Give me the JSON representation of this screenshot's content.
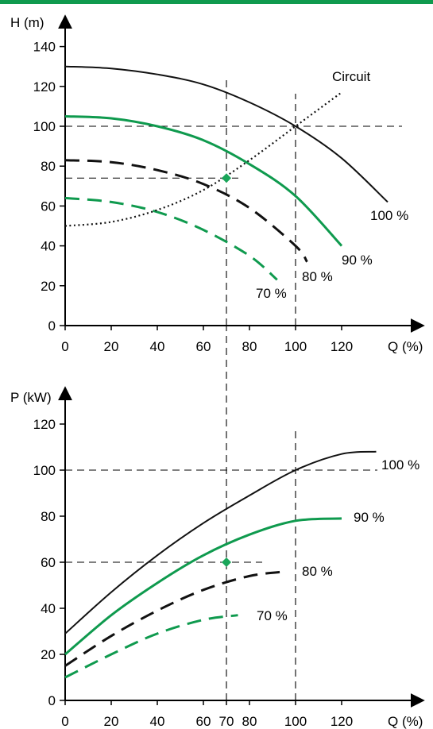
{
  "colors": {
    "accent_bar": "#0f9a4e",
    "green": "#0f9a4e",
    "black": "#111111",
    "marker": "#1aa65a"
  },
  "chart_data": [
    {
      "id": "head",
      "type": "line",
      "ylabel": "H (m)",
      "xlabel": "Q (%)",
      "xlim": [
        0,
        150
      ],
      "ylim": [
        0,
        150
      ],
      "xticks": [
        0,
        20,
        40,
        60,
        80,
        100,
        120
      ],
      "yticks": [
        0,
        20,
        40,
        60,
        80,
        100,
        120,
        140
      ],
      "series": [
        {
          "name": "100 %",
          "color": "black",
          "dash": "solid",
          "x": [
            0,
            20,
            40,
            60,
            80,
            100,
            120,
            140
          ],
          "y": [
            130,
            129,
            126,
            121,
            112,
            100,
            84,
            62
          ]
        },
        {
          "name": "90 %",
          "color": "green",
          "dash": "solid",
          "x": [
            0,
            20,
            40,
            60,
            80,
            100,
            120
          ],
          "y": [
            105,
            104,
            100,
            93,
            81,
            65,
            40
          ]
        },
        {
          "name": "80 %",
          "color": "black",
          "dash": "dashed",
          "x": [
            0,
            20,
            40,
            60,
            80,
            100,
            105
          ],
          "y": [
            83,
            82,
            78,
            71,
            59,
            40,
            32
          ]
        },
        {
          "name": "70 %",
          "color": "green",
          "dash": "dashed",
          "x": [
            0,
            20,
            40,
            60,
            80,
            92
          ],
          "y": [
            64,
            62,
            57,
            48,
            35,
            23
          ]
        },
        {
          "name": "Circuit",
          "color": "black",
          "dash": "dotted",
          "x": [
            0,
            20,
            40,
            60,
            80,
            100,
            120
          ],
          "y": [
            50,
            52,
            58,
            68,
            83,
            100,
            117
          ]
        }
      ],
      "guides": [
        {
          "type": "vline",
          "x": 70
        },
        {
          "type": "vline",
          "x": 100
        },
        {
          "type": "hline",
          "y": 100
        },
        {
          "type": "hline",
          "y": 74
        }
      ],
      "markers": [
        {
          "x": 70,
          "y": 74
        }
      ]
    },
    {
      "id": "power",
      "type": "line",
      "ylabel": "P (kW)",
      "xlabel": "Q (%)",
      "xlim": [
        0,
        150
      ],
      "ylim": [
        0,
        125
      ],
      "xticks": [
        0,
        20,
        40,
        60,
        70,
        80,
        100,
        120
      ],
      "yticks": [
        0,
        20,
        40,
        60,
        80,
        100,
        120
      ],
      "series": [
        {
          "name": "100 %",
          "color": "black",
          "dash": "solid",
          "x": [
            0,
            20,
            40,
            60,
            80,
            100,
            120,
            135
          ],
          "y": [
            29,
            47,
            63,
            77,
            89,
            100,
            107,
            108
          ]
        },
        {
          "name": "90 %",
          "color": "green",
          "dash": "solid",
          "x": [
            0,
            20,
            40,
            60,
            80,
            100,
            120
          ],
          "y": [
            20,
            37,
            51,
            63,
            72,
            78,
            79
          ]
        },
        {
          "name": "80 %",
          "color": "black",
          "dash": "dashed",
          "x": [
            0,
            20,
            40,
            60,
            80,
            96
          ],
          "y": [
            15,
            28,
            39,
            48,
            54,
            56
          ]
        },
        {
          "name": "70 %",
          "color": "green",
          "dash": "dashed",
          "x": [
            0,
            20,
            40,
            60,
            75
          ],
          "y": [
            10,
            20,
            29,
            35,
            37
          ]
        }
      ],
      "guides": [
        {
          "type": "vline",
          "x": 70
        },
        {
          "type": "vline",
          "x": 100
        },
        {
          "type": "hline",
          "y": 100
        },
        {
          "type": "hline",
          "y": 60
        }
      ],
      "markers": [
        {
          "x": 70,
          "y": 60
        }
      ]
    }
  ]
}
